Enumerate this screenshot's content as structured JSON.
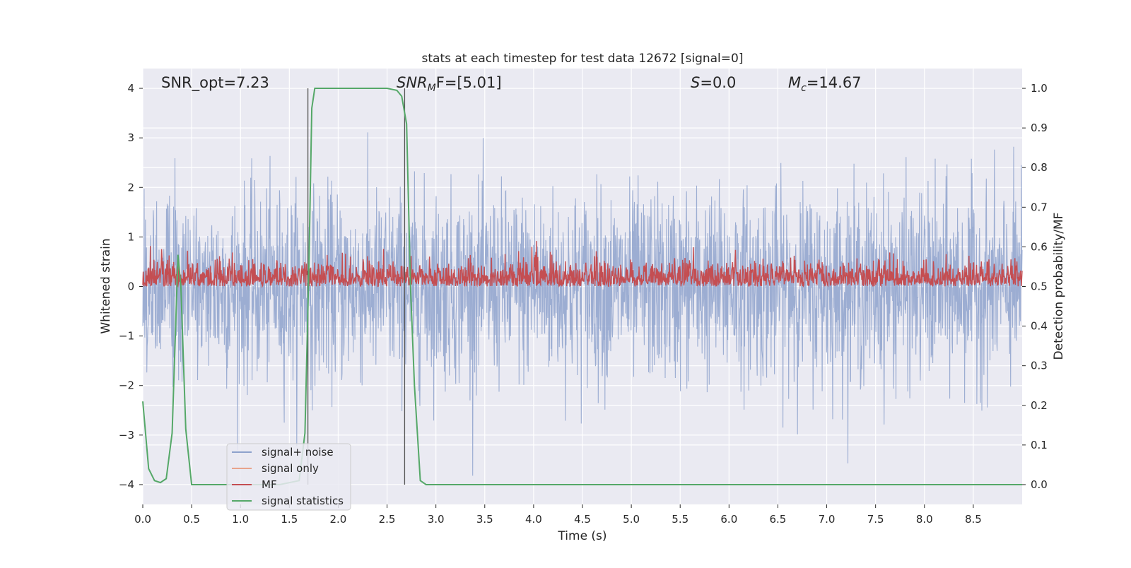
{
  "chart_data": {
    "type": "line",
    "title": "stats at each timestep for test data 12672 [signal=0]",
    "xlabel": "Time (s)",
    "ylabel": "Whitened strain",
    "ylabel_right": "Detection probability/MF",
    "xlim": [
      0.0,
      9.0
    ],
    "ylim": [
      -4.4,
      4.4
    ],
    "ylim_right": [
      -0.05,
      1.05
    ],
    "xticks": [
      "0.0",
      "0.5",
      "1.0",
      "1.5",
      "2.0",
      "2.5",
      "3.0",
      "3.5",
      "4.0",
      "4.5",
      "5.0",
      "5.5",
      "6.0",
      "6.5",
      "7.0",
      "7.5",
      "8.0",
      "8.5"
    ],
    "yticks_left": [
      "4",
      "3",
      "2",
      "1",
      "0",
      "−1",
      "−2",
      "−3",
      "−4"
    ],
    "yticks_right": [
      "1.0",
      "0.9",
      "0.8",
      "0.7",
      "0.6",
      "0.5",
      "0.4",
      "0.3",
      "0.2",
      "0.1",
      "0.0"
    ],
    "grid": true,
    "legend_position": "lower-left",
    "annotations": {
      "snr_opt": "SNR_opt=7.23",
      "snr_mf_base": "SNR",
      "snr_mf_sub": "M",
      "snr_mf_rest": "F=[5.01]",
      "s_var": "S",
      "s_rest": "=0.0",
      "mc_base": "M",
      "mc_sub": "c",
      "mc_rest": "=14.67"
    },
    "vertical_lines_x": [
      1.69,
      2.68
    ],
    "series": [
      {
        "name": "signal+ noise",
        "color": "#8ea2cc",
        "axis": "left",
        "description_values": "white Gaussian noise, std≈1, amplitude within about ±4",
        "approx_range": [
          -4.0,
          4.0
        ]
      },
      {
        "name": "signal only",
        "color": "#e8a48c",
        "axis": "left",
        "values": []
      },
      {
        "name": "MF",
        "color": "#c44e52",
        "axis": "right",
        "approx_range": [
          0.5,
          0.62
        ]
      },
      {
        "name": "signal statistics",
        "color": "#55a868",
        "axis": "right",
        "x": [
          0.0,
          0.06,
          0.12,
          0.18,
          0.24,
          0.3,
          0.36,
          0.39,
          0.44,
          0.5,
          0.6,
          0.8,
          1.0,
          1.2,
          1.4,
          1.6,
          1.66,
          1.7,
          1.73,
          1.76,
          1.8,
          2.0,
          2.2,
          2.4,
          2.5,
          2.6,
          2.65,
          2.7,
          2.74,
          2.78,
          2.84,
          2.9,
          3.0,
          4.0,
          5.0,
          6.0,
          7.0,
          8.0,
          9.0
        ],
        "y": [
          0.21,
          0.04,
          0.01,
          0.005,
          0.015,
          0.13,
          0.58,
          0.5,
          0.14,
          0.0,
          0.0,
          0.0,
          0.0,
          0.0,
          0.0,
          0.01,
          0.13,
          0.55,
          0.95,
          1.0,
          1.0,
          1.0,
          1.0,
          1.0,
          1.0,
          0.995,
          0.98,
          0.91,
          0.5,
          0.25,
          0.01,
          0.0,
          0.0,
          0.0,
          0.0,
          0.0,
          0.0,
          0.0,
          0.0
        ]
      }
    ]
  }
}
